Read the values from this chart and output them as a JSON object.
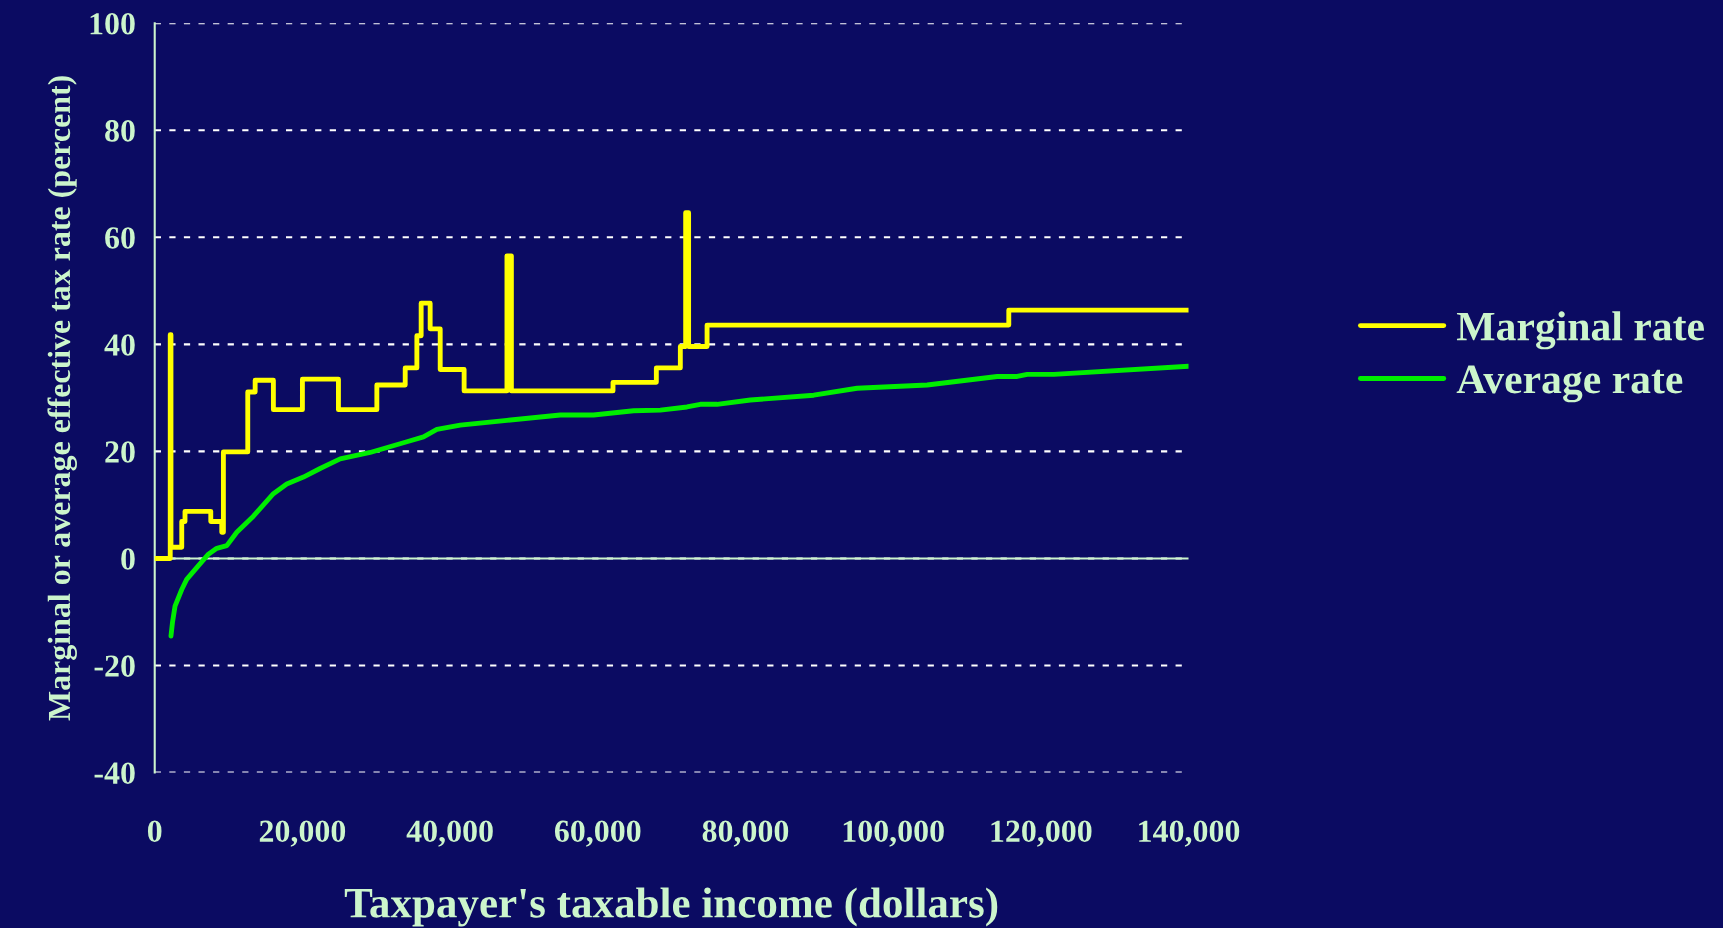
{
  "chart_data": {
    "type": "line",
    "xlabel": "Taxpayer's taxable income (dollars)",
    "ylabel": "Marginal or average effective tax rate (percent)",
    "xlim": [
      0,
      140000
    ],
    "xticks": [
      {
        "value": 0,
        "label": "0"
      },
      {
        "value": 20000,
        "label": "20,000"
      },
      {
        "value": 40000,
        "label": "40,000"
      },
      {
        "value": 60000,
        "label": "60,000"
      },
      {
        "value": 80000,
        "label": "80,000"
      },
      {
        "value": 100000,
        "label": "100,000"
      },
      {
        "value": 120000,
        "label": "120,000"
      },
      {
        "value": 140000,
        "label": "140,000"
      }
    ],
    "ylim": [
      -40,
      100
    ],
    "yticks": [
      -40,
      -20,
      0,
      20,
      40,
      60,
      80,
      100
    ],
    "grid": "y",
    "legend": "right",
    "ref_lines": [
      {
        "axis": "y",
        "value": 0,
        "color": "#ccf5cc",
        "line_style": "solid"
      }
    ],
    "line_style": "solid",
    "marker": "none",
    "series": [
      {
        "name": "Marginal rate",
        "type": "step",
        "color": "#ffff00",
        "x": [
          0,
          2100,
          2200,
          3660,
          4100,
          7590,
          9080,
          9300,
          12600,
          13600,
          16070,
          20000,
          24880,
          30080,
          33920,
          35500,
          36080,
          37300,
          38660,
          41900,
          47700,
          48300,
          62060,
          67930,
          71180,
          71900,
          72300,
          74800,
          115660,
          140000
        ],
        "values": [
          0,
          41.8,
          2.1,
          6.9,
          8.8,
          6.9,
          4.9,
          19.9,
          31.1,
          33.3,
          27.8,
          33.5,
          27.8,
          32.4,
          35.6,
          41.6,
          47.7,
          42.9,
          35.3,
          31.3,
          56.5,
          31.3,
          32.9,
          35.6,
          39.6,
          64.6,
          39.6,
          43.6,
          46.4,
          46.4
        ]
      },
      {
        "name": "Average rate",
        "color": "#00ee00",
        "x": [
          2200,
          2400,
          2750,
          3660,
          4330,
          5690,
          7270,
          8400,
          9760,
          11110,
          13360,
          16070,
          17880,
          20140,
          22400,
          25110,
          29170,
          34150,
          36400,
          38210,
          41370,
          47700,
          54920,
          59430,
          64850,
          68470,
          72080,
          73890,
          76150,
          80660,
          89240,
          95120,
          104600,
          114090,
          116800,
          118160,
          121760,
          140000
        ],
        "values": [
          -14.5,
          -12,
          -8.9,
          -5.8,
          -3.9,
          -1.7,
          0.8,
          1.9,
          2.4,
          4.9,
          7.9,
          12.1,
          13.9,
          15.2,
          16.8,
          18.6,
          19.8,
          21.8,
          22.7,
          24.1,
          24.9,
          25.8,
          26.8,
          26.8,
          27.6,
          27.7,
          28.3,
          28.8,
          28.8,
          29.6,
          30.5,
          31.8,
          32.4,
          34.0,
          34.0,
          34.4,
          34.4,
          35.9
        ]
      }
    ]
  }
}
